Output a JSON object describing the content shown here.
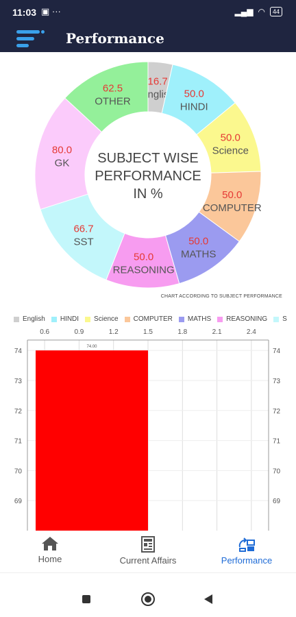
{
  "status_bar": {
    "time": "11:03",
    "left_icons": "▣ ···",
    "signal": "▂▄▆",
    "wifi": "◠",
    "battery": "44"
  },
  "app_bar": {
    "title": "Performance",
    "menu_icon": "menu-icon",
    "accent_color": "#1f2540"
  },
  "chart_data": [
    {
      "type": "pie",
      "title": "SUBJECT WISE PERFORMANCE IN %",
      "center_lines": [
        "SUBJECT WISE",
        "PERFORMANCE",
        "IN %"
      ],
      "caption": "CHART ACCORDING TO SUBJECT PERFORMANCE",
      "slices": [
        {
          "label": "English",
          "value": 16.7,
          "display": "16.7",
          "color": "#cfcfcf"
        },
        {
          "label": "HINDI",
          "value": 50.0,
          "display": "50.0",
          "color": "#9ff0fb"
        },
        {
          "label": "Science",
          "value": 50.0,
          "display": "50.0",
          "color": "#fbf88e"
        },
        {
          "label": "COMPUTER",
          "value": 50.0,
          "display": "50.0",
          "color": "#fbc79a"
        },
        {
          "label": "MATHS",
          "value": 50.0,
          "display": "50.0",
          "color": "#9b9bf0"
        },
        {
          "label": "REASONING",
          "value": 50.0,
          "display": "50.0",
          "color": "#f79cf0"
        },
        {
          "label": "SST",
          "value": 66.7,
          "display": "66.7",
          "color": "#c3f7fb"
        },
        {
          "label": "GK",
          "value": 80.0,
          "display": "80.0",
          "color": "#fbcbfb"
        },
        {
          "label": "OTHER",
          "value": 62.5,
          "display": "62.5",
          "color": "#94f09a"
        }
      ],
      "value_color": "#e53935"
    },
    {
      "type": "bar",
      "legend": [
        "English",
        "HINDI",
        "Science",
        "COMPUTER",
        "MATHS",
        "REASONING",
        "S"
      ],
      "legend_colors": [
        "#cfcfcf",
        "#9ff0fb",
        "#fbf88e",
        "#fbc79a",
        "#9b9bf0",
        "#f79cf0",
        "#c3f7fb"
      ],
      "x_ticks": [
        "0.6",
        "0.9",
        "1.2",
        "1.5",
        "1.8",
        "2.1",
        "2.4"
      ],
      "x_tick_values": [
        0.6,
        0.9,
        1.2,
        1.5,
        1.8,
        2.1,
        2.4
      ],
      "xlim": [
        0.45,
        2.55
      ],
      "y_ticks": [
        "74",
        "73",
        "72",
        "71",
        "70",
        "69"
      ],
      "y_tick_values": [
        74,
        73,
        72,
        71,
        70,
        69
      ],
      "ylim": [
        68,
        74.3
      ],
      "bars": [
        {
          "x_start": 0.45,
          "x_end": 1.5,
          "value": 74,
          "label": "74.00",
          "color": "#ff0000"
        }
      ]
    }
  ],
  "bottom_nav": {
    "items": [
      {
        "label": "Home",
        "icon": "home-icon"
      },
      {
        "label": "Current Affairs",
        "icon": "newspaper-icon"
      },
      {
        "label": "Performance",
        "icon": "performance-icon",
        "active": true
      }
    ],
    "active_color": "#1e6bd6"
  }
}
